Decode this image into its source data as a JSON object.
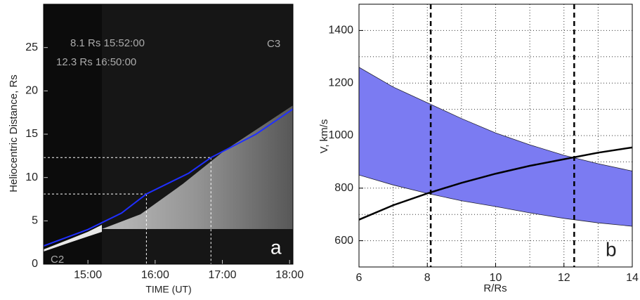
{
  "chart_data": [
    {
      "type": "line",
      "panel_label": "a",
      "y_label": "Heliocentric Distance, Rs",
      "x_label": "TIME (UT)",
      "annotations": [
        "8.1 Rs 15:52:00",
        "12.3 Rs 16:50:00",
        "C3",
        "C2"
      ],
      "x": [
        14.34,
        15.0,
        15.5,
        15.87,
        16.5,
        16.83,
        17.5,
        18.05
      ],
      "y": [
        2.1,
        4.0,
        5.9,
        8.1,
        10.5,
        12.3,
        15.0,
        17.9
      ],
      "color": "#1f2fff",
      "markers": [
        {
          "x": 15.87,
          "y": 8.1
        },
        {
          "x": 16.83,
          "y": 12.3
        }
      ],
      "xlim": [
        14.34,
        18.05
      ],
      "ylim": [
        0,
        30
      ],
      "xticks": [
        {
          "value": 15,
          "label": "15:00"
        },
        {
          "value": 16,
          "label": "16:00"
        },
        {
          "value": 17,
          "label": "17:00"
        },
        {
          "value": 18,
          "label": "18:00"
        }
      ],
      "yticks": [
        0,
        5,
        10,
        15,
        20,
        25
      ]
    },
    {
      "type": "line",
      "panel_label": "b",
      "y_label": "V, km/s",
      "x_label": "R/Rs",
      "x": [
        6,
        7,
        8,
        9,
        10,
        11,
        12,
        13,
        14
      ],
      "band": {
        "color": "#7b7bf2",
        "upper": [
          1260,
          1185,
          1125,
          1065,
          1010,
          965,
          925,
          893,
          865
        ],
        "lower": [
          850,
          812,
          780,
          752,
          730,
          706,
          685,
          668,
          655
        ]
      },
      "line": {
        "color": "#000000",
        "values": [
          680,
          735,
          780,
          820,
          855,
          885,
          910,
          935,
          955
        ]
      },
      "vlines": [
        8.1,
        12.3
      ],
      "xlim": [
        6,
        14
      ],
      "ylim": [
        500,
        1500
      ],
      "xticks": [
        6,
        8,
        10,
        12,
        14
      ],
      "yticks": [
        600,
        800,
        1000,
        1200,
        1400
      ],
      "xgrid": [
        7,
        8,
        9,
        10,
        11,
        12,
        13
      ],
      "ygrid": [
        600,
        700,
        800,
        900,
        1000,
        1100,
        1200,
        1300,
        1400
      ],
      "grid": true
    }
  ]
}
